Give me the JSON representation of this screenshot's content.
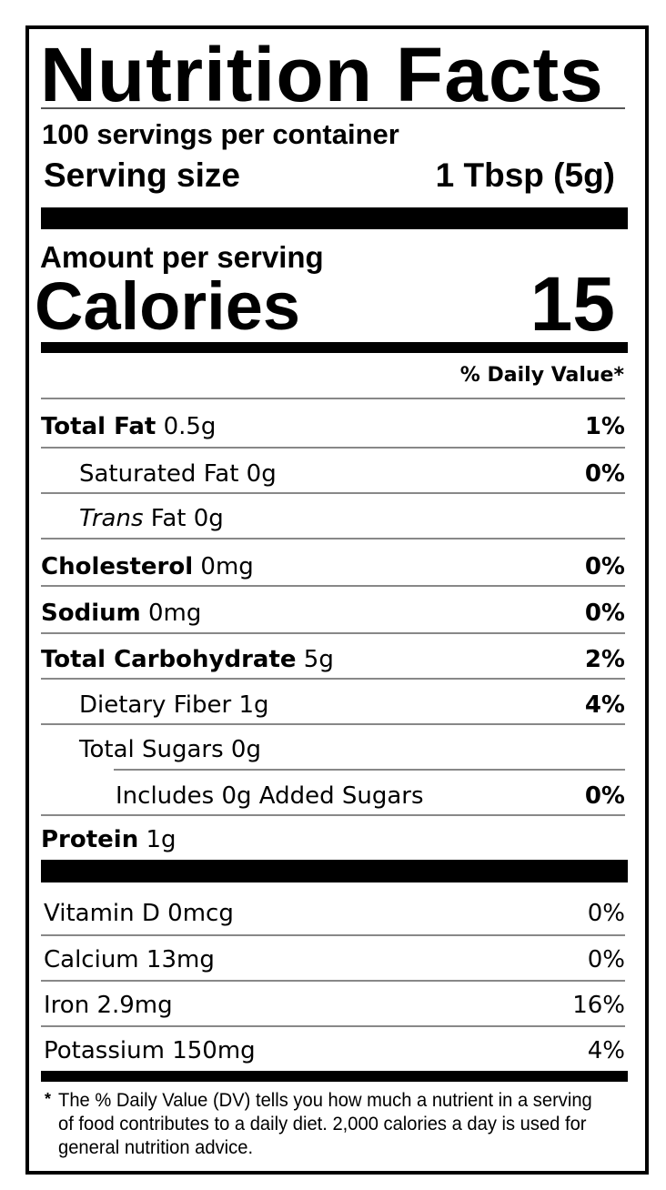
{
  "title": "Nutrition Facts",
  "servings_per_container": "100 servings per container",
  "serving_size_label": "Serving size",
  "serving_size_value": "1 Tbsp (5g)",
  "amount_per_serving": "Amount per serving",
  "calories_label": "Calories",
  "calories_value": "15",
  "dv_header": "% Daily Value*",
  "nutrients": [
    {
      "name": "Total Fat",
      "amount": "0.5g",
      "dv": "1%"
    },
    {
      "name": "Saturated Fat",
      "amount": "0g",
      "dv": "0%"
    },
    {
      "name": "Trans",
      "name_rest": "Fat",
      "amount": "0g",
      "dv": ""
    },
    {
      "name": "Cholesterol",
      "amount": "0mg",
      "dv": "0%"
    },
    {
      "name": "Sodium",
      "amount": "0mg",
      "dv": "0%"
    },
    {
      "name": "Total Carbohydrate",
      "amount": "5g",
      "dv": "2%"
    },
    {
      "name": "Dietary Fiber",
      "amount": "1g",
      "dv": "4%"
    },
    {
      "name": "Total Sugars",
      "amount": "0g",
      "dv": ""
    },
    {
      "name": "Includes 0g Added Sugars",
      "amount": "",
      "dv": "0%"
    },
    {
      "name": "Protein",
      "amount": "1g",
      "dv": ""
    }
  ],
  "vitamins": [
    {
      "name": "Vitamin D",
      "amount": "0mcg",
      "dv": "0%"
    },
    {
      "name": "Calcium",
      "amount": "13mg",
      "dv": "0%"
    },
    {
      "name": "Iron",
      "amount": "2.9mg",
      "dv": "16%"
    },
    {
      "name": "Potassium",
      "amount": "150mg",
      "dv": "4%"
    }
  ],
  "footnote_star": "*",
  "footnote": "The % Daily Value (DV) tells you how much a nutrient in a serving of food contributes to a daily diet. 2,000 calories a day is used for general nutrition advice."
}
